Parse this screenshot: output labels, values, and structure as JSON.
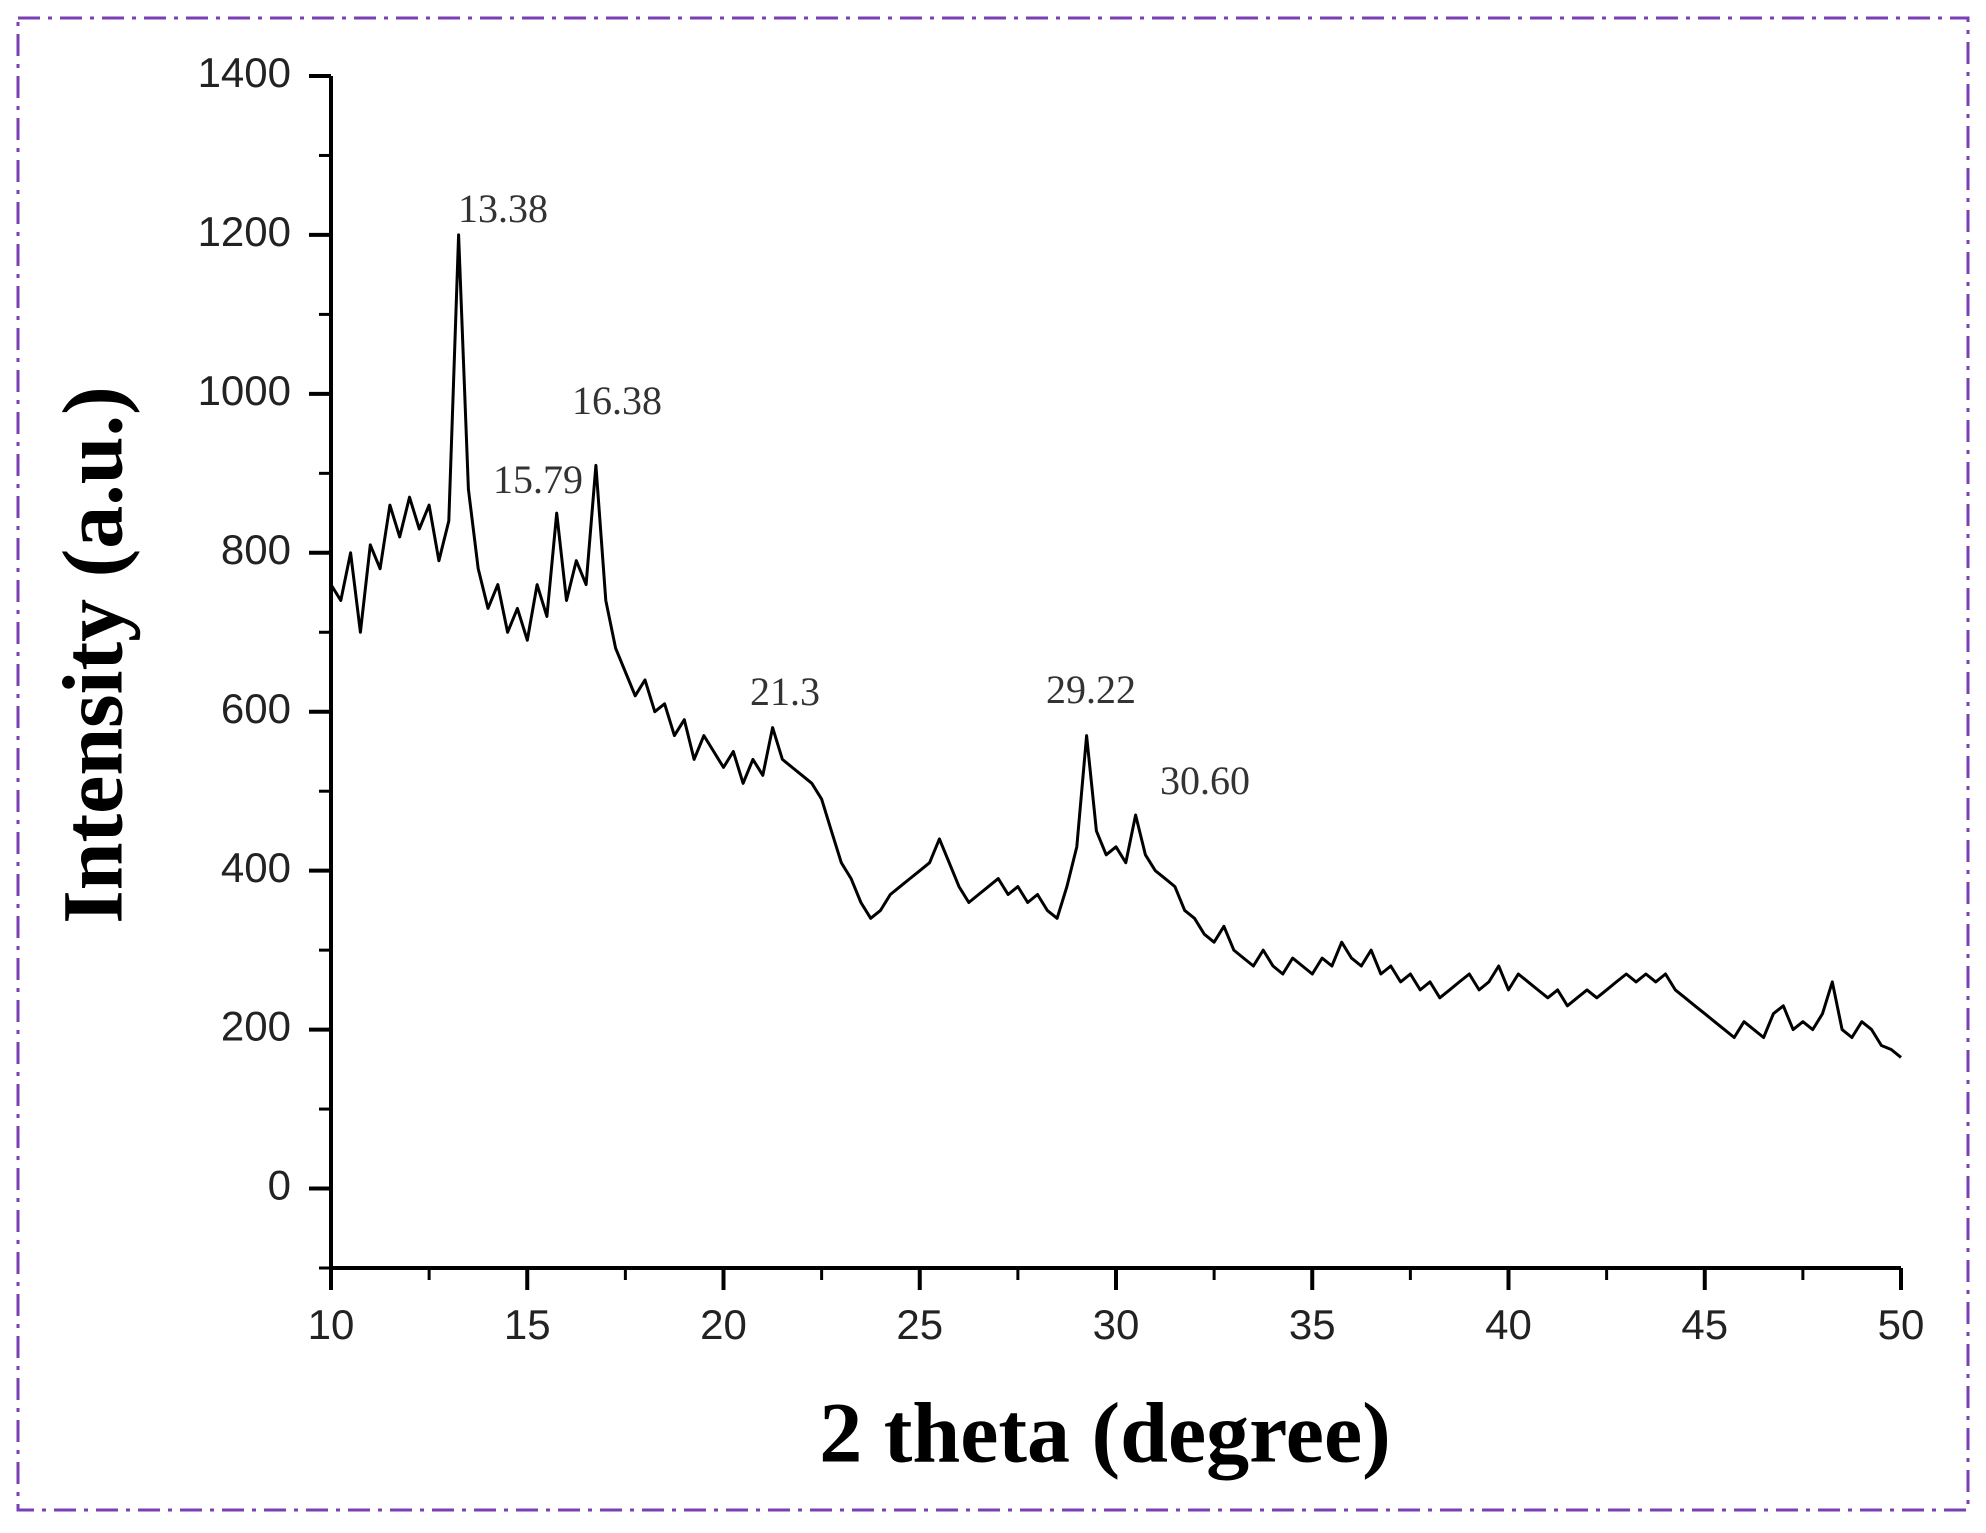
{
  "chart_data": {
    "type": "line",
    "xlabel": "2 theta (degree)",
    "ylabel": "Intensity (a.u.)",
    "annotations": [
      "13.38",
      "15.79",
      "16.38",
      "21.3",
      "29.22",
      "30.60"
    ],
    "xlim": [
      10,
      50
    ],
    "ylim": [
      -100,
      1400
    ],
    "xticks": [
      10,
      15,
      20,
      25,
      30,
      35,
      40,
      45,
      50
    ],
    "yticks": [
      0,
      200,
      400,
      600,
      800,
      1000,
      1200,
      1400
    ],
    "minor_xticks": [
      12.5,
      17.5,
      22.5,
      27.5,
      32.5,
      37.5,
      42.5,
      47.5
    ],
    "minor_yticks": [
      -100,
      100,
      300,
      500,
      700,
      900,
      1100,
      1300
    ],
    "x": [
      10,
      10.25,
      10.5,
      10.75,
      11,
      11.25,
      11.5,
      11.75,
      12,
      12.25,
      12.5,
      12.75,
      13,
      13.25,
      13.5,
      13.75,
      14,
      14.25,
      14.5,
      14.75,
      15,
      15.25,
      15.5,
      15.75,
      16,
      16.25,
      16.5,
      16.75,
      17,
      17.25,
      17.5,
      17.75,
      18,
      18.25,
      18.5,
      18.75,
      19,
      19.25,
      19.5,
      19.75,
      20,
      20.25,
      20.5,
      20.75,
      21,
      21.25,
      21.5,
      21.75,
      22,
      22.25,
      22.5,
      22.75,
      23,
      23.25,
      23.5,
      23.75,
      24,
      24.25,
      24.5,
      24.75,
      25,
      25.25,
      25.5,
      25.75,
      26,
      26.25,
      26.5,
      26.75,
      27,
      27.25,
      27.5,
      27.75,
      28,
      28.25,
      28.5,
      28.75,
      29,
      29.25,
      29.5,
      29.75,
      30,
      30.25,
      30.5,
      30.75,
      31,
      31.25,
      31.5,
      31.75,
      32,
      32.25,
      32.5,
      32.75,
      33,
      33.25,
      33.5,
      33.75,
      34,
      34.25,
      34.5,
      34.75,
      35,
      35.25,
      35.5,
      35.75,
      36,
      36.25,
      36.5,
      36.75,
      37,
      37.25,
      37.5,
      37.75,
      38,
      38.25,
      38.5,
      38.75,
      39,
      39.25,
      39.5,
      39.75,
      40,
      40.25,
      40.5,
      40.75,
      41,
      41.25,
      41.5,
      41.75,
      42,
      42.25,
      42.5,
      42.75,
      43,
      43.25,
      43.5,
      43.75,
      44,
      44.25,
      44.5,
      44.75,
      45,
      45.25,
      45.5,
      45.75,
      46,
      46.25,
      46.5,
      46.75,
      47,
      47.25,
      47.5,
      47.75,
      48,
      48.25,
      48.5,
      48.75,
      49,
      49.25,
      49.5,
      49.75,
      50
    ],
    "series": [
      {
        "color": "#000000",
        "values": [
          760,
          740,
          800,
          700,
          810,
          780,
          860,
          820,
          870,
          830,
          860,
          790,
          840,
          1200,
          880,
          780,
          730,
          760,
          700,
          730,
          690,
          760,
          720,
          850,
          740,
          790,
          760,
          910,
          740,
          680,
          650,
          620,
          640,
          600,
          610,
          570,
          590,
          540,
          570,
          550,
          530,
          550,
          510,
          540,
          520,
          580,
          540,
          530,
          520,
          510,
          490,
          450,
          410,
          390,
          360,
          340,
          350,
          370,
          380,
          390,
          400,
          410,
          440,
          410,
          380,
          360,
          370,
          380,
          390,
          370,
          380,
          360,
          370,
          350,
          340,
          380,
          430,
          570,
          450,
          420,
          430,
          410,
          470,
          420,
          400,
          390,
          380,
          350,
          340,
          320,
          310,
          330,
          300,
          290,
          280,
          300,
          280,
          270,
          290,
          280,
          270,
          290,
          280,
          310,
          290,
          280,
          300,
          270,
          280,
          260,
          270,
          250,
          260,
          240,
          250,
          260,
          270,
          250,
          260,
          280,
          250,
          270,
          260,
          250,
          240,
          250,
          230,
          240,
          250,
          240,
          250,
          260,
          270,
          260,
          270,
          260,
          270,
          250,
          240,
          230,
          220,
          210,
          200,
          190,
          210,
          200,
          190,
          220,
          230,
          200,
          210,
          200,
          220,
          260,
          200,
          190,
          210,
          200,
          180,
          175,
          165
        ]
      }
    ]
  }
}
